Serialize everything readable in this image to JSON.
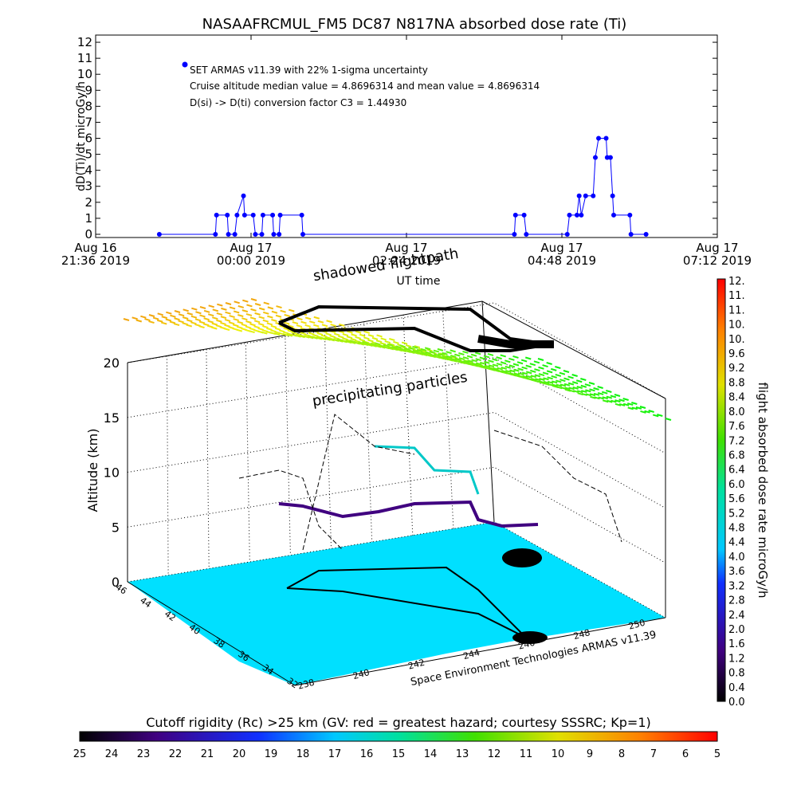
{
  "chart_data": {
    "type": "line",
    "title": "NASAAFRCMUL_FM5 DC87 N817NA absorbed dose rate (Ti)",
    "ylabel": "dD(Ti)/dt microGy/h",
    "xlabel": "UT time",
    "annotations": [
      "Cruise altitude median value = 4.8696314 and mean value = 4.8696314",
      "D(si) -> D(ti) conversion factor C3 = 1.44930"
    ],
    "x": [
      "2019-08-16 22:35",
      "2019-08-16 23:27",
      "2019-08-16 23:28",
      "2019-08-16 23:38",
      "2019-08-16 23:39",
      "2019-08-16 23:45",
      "2019-08-16 23:47",
      "2019-08-16 23:53",
      "2019-08-16 23:54",
      "2019-08-17 00:02",
      "2019-08-17 00:04",
      "2019-08-17 00:10",
      "2019-08-17 00:11",
      "2019-08-17 00:20",
      "2019-08-17 00:21",
      "2019-08-17 00:26",
      "2019-08-17 00:27",
      "2019-08-17 00:47",
      "2019-08-17 00:48",
      "2019-08-17 04:04",
      "2019-08-17 04:05",
      "2019-08-17 04:13",
      "2019-08-17 04:15",
      "2019-08-17 04:53",
      "2019-08-17 04:55",
      "2019-08-17 05:02",
      "2019-08-17 05:04",
      "2019-08-17 05:06",
      "2019-08-17 05:10",
      "2019-08-17 05:17",
      "2019-08-17 05:19",
      "2019-08-17 05:22",
      "2019-08-17 05:29",
      "2019-08-17 05:30",
      "2019-08-17 05:33",
      "2019-08-17 05:35",
      "2019-08-17 05:36",
      "2019-08-17 05:51",
      "2019-08-17 05:52",
      "2019-08-17 06:06"
    ],
    "series": [
      {
        "name": "SET ARMAS v11.39 with 22% 1-sigma uncertainty",
        "color": "#0000ff",
        "values": [
          0,
          0,
          1.2,
          1.2,
          0,
          0,
          1.2,
          2.4,
          1.2,
          1.2,
          0,
          0,
          1.2,
          1.2,
          0,
          0,
          1.2,
          1.2,
          0,
          0,
          1.2,
          1.2,
          0,
          0,
          1.2,
          1.2,
          2.4,
          1.2,
          2.4,
          2.4,
          4.8,
          6.0,
          6.0,
          4.8,
          4.8,
          2.4,
          1.2,
          1.2,
          0,
          0
        ]
      }
    ],
    "xlim": [
      "2019-08-16 21:36",
      "2019-08-17 07:12"
    ],
    "xticks": [
      {
        "value": "2019-08-16 21:36",
        "label": "Aug 16\n21:36 2019"
      },
      {
        "value": "2019-08-17 00:00",
        "label": "Aug 17\n00:00 2019"
      },
      {
        "value": "2019-08-17 02:24",
        "label": "Aug 17\n02:24 2019"
      },
      {
        "value": "2019-08-17 04:48",
        "label": "Aug 17\n04:48 2019"
      },
      {
        "value": "2019-08-17 07:12",
        "label": "Aug 17\n07:12 2019"
      }
    ],
    "ylim": [
      -0.2,
      12.45
    ],
    "yticks": [
      0,
      1,
      2,
      3,
      4,
      5,
      6,
      7,
      8,
      9,
      10,
      11,
      12
    ]
  },
  "globe_plot": {
    "annotations": [
      "shadowed flightpath",
      "precipitating particles"
    ],
    "zlabel": "Altitude (km)",
    "zticks": [
      0,
      5,
      10,
      15,
      20
    ],
    "lat_ticks": [
      46,
      44,
      42,
      40,
      38,
      36,
      34,
      32
    ],
    "lon_ticks": [
      238,
      240,
      242,
      244,
      246,
      248,
      250
    ],
    "credit": "Space Environment Technologies ARMAS v11.39"
  },
  "dose_colorbar": {
    "title": "flight absorbed dose rate microGy/h",
    "labels": [
      "0.0",
      "0.4",
      "0.8",
      "1.2",
      "1.6",
      "2.0",
      "2.4",
      "2.8",
      "3.2",
      "3.6",
      "4.0",
      "4.4",
      "4.8",
      "5.2",
      "5.6",
      "6.0",
      "6.4",
      "6.8",
      "7.2",
      "7.6",
      "8.0",
      "8.4",
      "8.8",
      "9.2",
      "9.6",
      "10.",
      "10.",
      "11.",
      "11.",
      "12."
    ]
  },
  "rigidity_colorbar": {
    "title": "Cutoff rigidity (Rc) >25 km (GV: red = greatest hazard; courtesy SSSRC; Kp=1)",
    "labels": [
      25,
      24,
      23,
      22,
      21,
      20,
      19,
      18,
      17,
      16,
      15,
      14,
      13,
      12,
      11,
      10,
      9,
      8,
      7,
      6,
      5
    ]
  }
}
